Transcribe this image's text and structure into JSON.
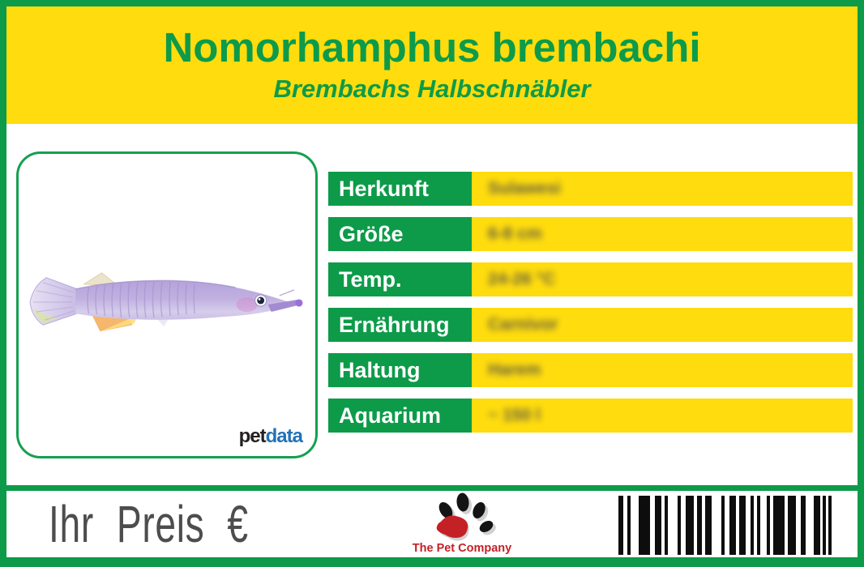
{
  "header": {
    "title": "Nomorhamphus brembachi",
    "subtitle": "Brembachs Halbschnäbler"
  },
  "photo": {
    "brand_pet": "pet",
    "brand_data": "data",
    "image_subject": "purple-halfbeak-fish"
  },
  "table": {
    "rows": [
      {
        "label": "Herkunft",
        "value": "Sulawesi"
      },
      {
        "label": "Größe",
        "value": "6-8 cm"
      },
      {
        "label": "Temp.",
        "value": "24-26 °C"
      },
      {
        "label": "Ernährung",
        "value": "Carnivor"
      },
      {
        "label": "Haltung",
        "value": "Harem"
      },
      {
        "label": "Aquarium",
        "value": "~ 150 l"
      }
    ]
  },
  "footer": {
    "price_label": "Ihr Preis €",
    "company": "The Pet Company"
  },
  "colors": {
    "green": "#0d9b49",
    "yellow": "#ffdc0e",
    "price_gray": "#4d4d4d",
    "petdata_blue": "#2272b7",
    "company_red": "#c42127"
  },
  "barcode": {
    "bars": [
      [
        6,
        5
      ],
      [
        4,
        10
      ],
      [
        14,
        6
      ],
      [
        8,
        4
      ],
      [
        4,
        12
      ],
      [
        4,
        6
      ],
      [
        10,
        4
      ],
      [
        6,
        4
      ],
      [
        8,
        12
      ],
      [
        4,
        6
      ],
      [
        8,
        4
      ],
      [
        8,
        6
      ],
      [
        4,
        4
      ],
      [
        4,
        8
      ],
      [
        4,
        4
      ],
      [
        14,
        4
      ],
      [
        10,
        6
      ],
      [
        6,
        10
      ],
      [
        8,
        3
      ],
      [
        4,
        3
      ],
      [
        4,
        0
      ]
    ]
  }
}
